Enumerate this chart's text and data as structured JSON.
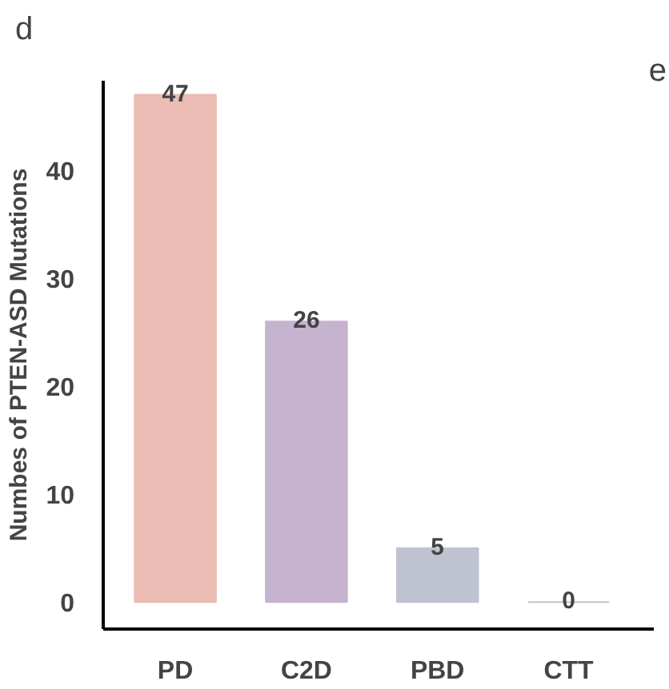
{
  "chart_data": {
    "type": "bar",
    "title": "d",
    "ylabel": "Numbes of PTEN-ASD Mutations",
    "categories": [
      "PD",
      "C2D",
      "PBD",
      "CTT"
    ],
    "values": [
      47,
      26,
      5,
      0
    ],
    "colors": [
      "#ebbcb4",
      "#c5b3d0",
      "#bfc3d0",
      "#bfc3d0"
    ],
    "ylim": [
      -2.5,
      48.3
    ],
    "yticks": [
      0,
      10,
      20,
      30,
      40
    ],
    "grid": false,
    "data_labels": true,
    "annotations": [
      "e"
    ]
  }
}
